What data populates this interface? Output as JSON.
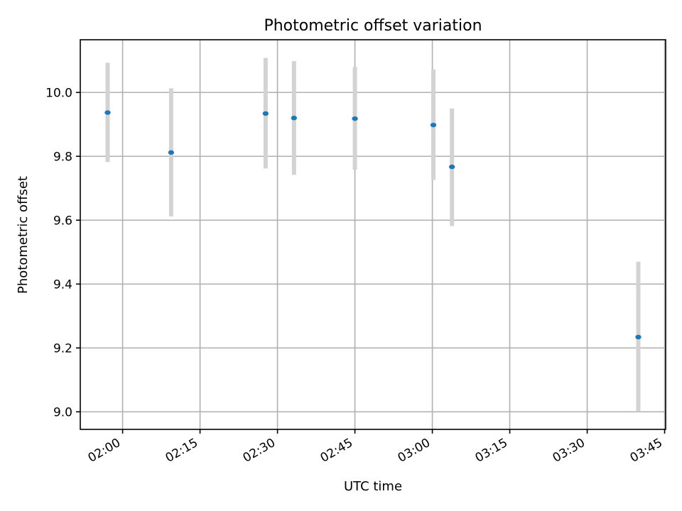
{
  "chart_data": {
    "type": "scatter",
    "title": "Photometric offset variation",
    "xlabel": "UTC time",
    "ylabel": "Photometric offset",
    "x_ticks": [
      "02:00",
      "02:15",
      "02:30",
      "02:45",
      "03:00",
      "03:15",
      "03:30",
      "03:45"
    ],
    "x_tick_minutes": [
      120,
      135,
      150,
      165,
      180,
      195,
      210,
      225
    ],
    "xlim_minutes": [
      111.8,
      225.2
    ],
    "ylim": [
      8.945,
      10.165
    ],
    "y_ticks": [
      9.0,
      9.2,
      9.4,
      9.6,
      9.8,
      10.0
    ],
    "y_tick_labels": [
      "9.0",
      "9.2",
      "9.4",
      "9.6",
      "9.8",
      "10.0"
    ],
    "grid": true,
    "x": [
      "01:57",
      "02:09",
      "02:27",
      "02:33",
      "02:45",
      "03:00",
      "03:04",
      "03:40"
    ],
    "x_minutes": [
      117.1,
      129.4,
      147.7,
      153.2,
      165.0,
      180.2,
      183.8,
      219.9
    ],
    "series": [
      {
        "values": [
          9.937,
          9.812,
          9.934,
          9.92,
          9.918,
          9.898,
          9.767,
          9.234
        ],
        "err_low": [
          9.782,
          9.612,
          9.762,
          9.742,
          9.758,
          9.726,
          9.582,
          9.0
        ],
        "err_high": [
          10.093,
          10.013,
          10.108,
          10.098,
          10.08,
          10.072,
          9.95,
          9.47
        ],
        "color": "#1f77b4",
        "errcolor": "#d3d3d3"
      }
    ]
  }
}
